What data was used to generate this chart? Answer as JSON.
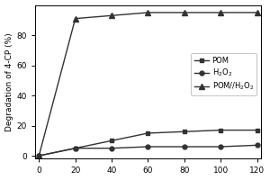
{
  "x": [
    0,
    20,
    40,
    60,
    80,
    100,
    120
  ],
  "pom": [
    0,
    5,
    10,
    15,
    16,
    17,
    17
  ],
  "h2o2": [
    0,
    5,
    5,
    6,
    6,
    6,
    7
  ],
  "pom_h2o2": [
    0,
    91,
    93,
    95,
    95,
    95,
    95
  ],
  "ylabel": "Degradation of 4-CP (%)",
  "xlim": [
    -2,
    122
  ],
  "ylim": [
    -2,
    100
  ],
  "xticks": [
    0,
    20,
    40,
    60,
    80,
    100,
    120
  ],
  "yticks": [
    0,
    20,
    40,
    60,
    80
  ],
  "legend_pom": "POM",
  "legend_h2o2": "H$_2$O$_2$",
  "legend_pom_h2o2": "POM//H$_2$O$_2$",
  "line_color": "#333333",
  "bg_color": "#ffffff"
}
